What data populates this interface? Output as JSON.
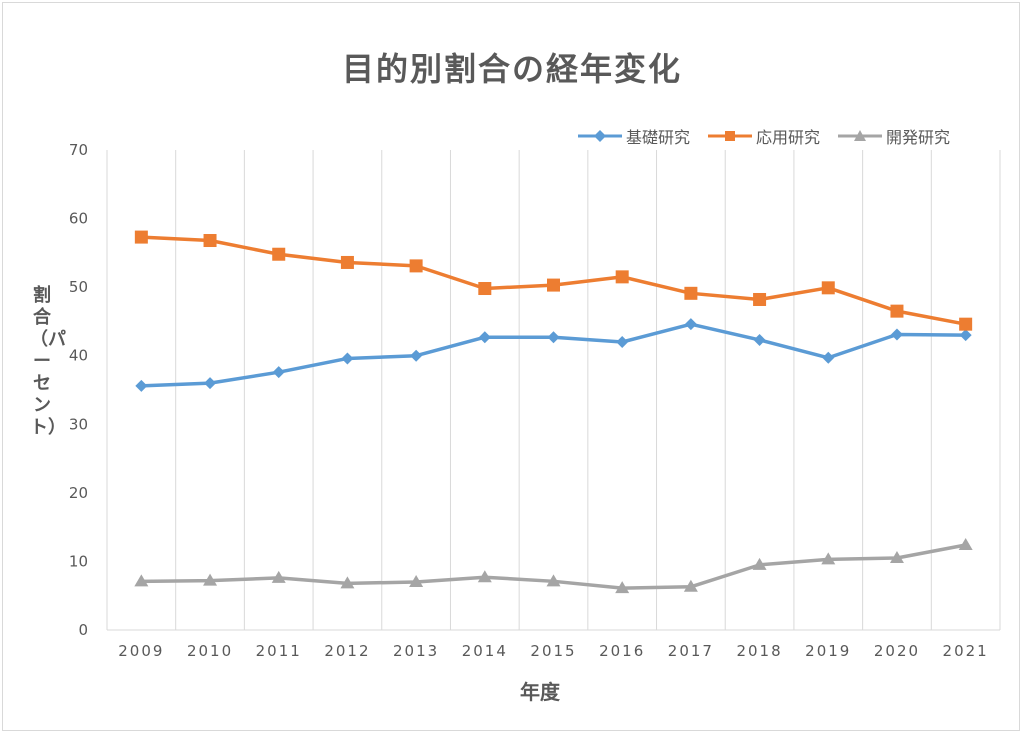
{
  "chart_data": {
    "type": "line",
    "title": "目的別割合の経年変化",
    "xlabel": "年度",
    "ylabel": "割合（パーセント）",
    "categories": [
      "2009",
      "2010",
      "2011",
      "2012",
      "2013",
      "2014",
      "2015",
      "2016",
      "2017",
      "2018",
      "2019",
      "2020",
      "2021"
    ],
    "ylim": [
      0,
      70
    ],
    "yticks": [
      "0",
      "10",
      "20",
      "30",
      "40",
      "50",
      "60",
      "70"
    ],
    "grid": "vertical",
    "legend_position": "top-right",
    "series": [
      {
        "name": "基礎研究",
        "color": "#5b9bd5",
        "marker": "diamond",
        "values": [
          35.6,
          36.0,
          37.6,
          39.6,
          40.0,
          42.7,
          42.7,
          42.0,
          44.6,
          42.3,
          39.7,
          43.1,
          43.0
        ]
      },
      {
        "name": "応用研究",
        "color": "#ed7d31",
        "marker": "square",
        "values": [
          57.3,
          56.8,
          54.8,
          53.6,
          53.1,
          49.8,
          50.3,
          51.5,
          49.1,
          48.2,
          49.9,
          46.5,
          44.6
        ]
      },
      {
        "name": "開発研究",
        "color": "#a5a5a5",
        "marker": "triangle",
        "values": [
          7.1,
          7.2,
          7.6,
          6.8,
          7.0,
          7.7,
          7.1,
          6.1,
          6.3,
          9.5,
          10.3,
          10.5,
          12.4
        ]
      }
    ]
  }
}
